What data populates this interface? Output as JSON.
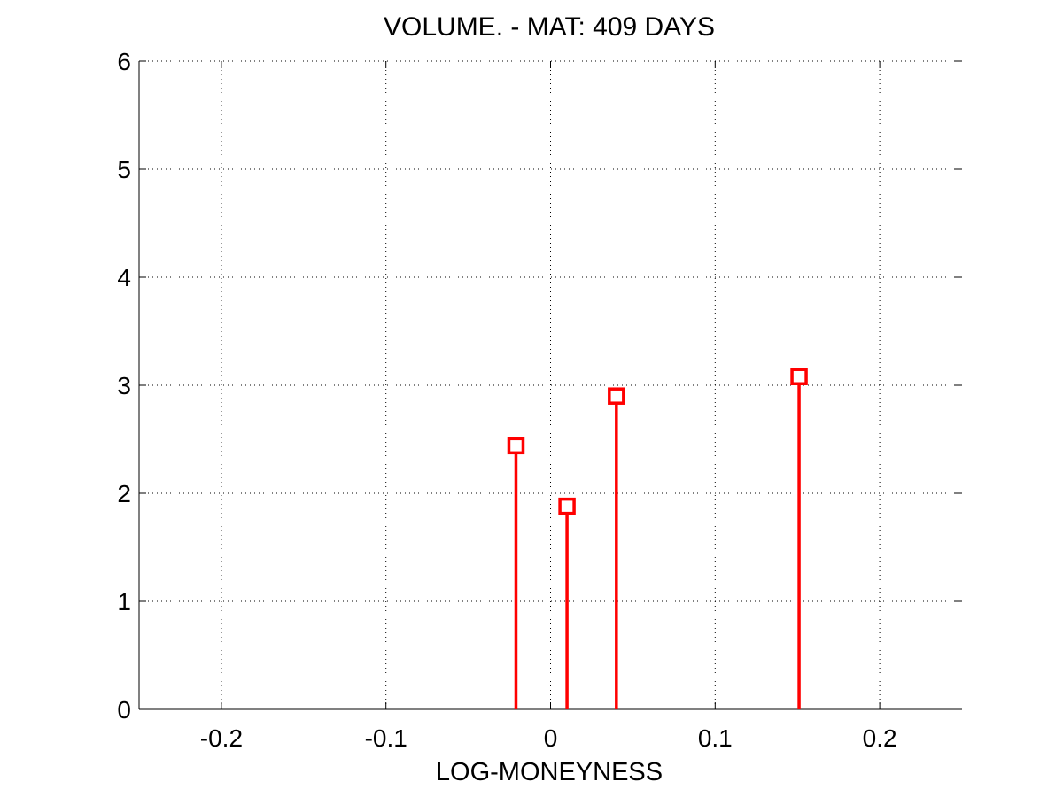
{
  "chart_data": {
    "type": "stem",
    "title": "VOLUME. - MAT: 409 DAYS",
    "xlabel": "LOG-MONEYNESS",
    "ylabel": "",
    "xlim": [
      -0.25,
      0.25
    ],
    "ylim": [
      0,
      6
    ],
    "xticks": [
      -0.2,
      -0.1,
      0,
      0.1,
      0.2
    ],
    "xtick_labels": [
      "-0.2",
      "-0.1",
      "0",
      "0.1",
      "0.2"
    ],
    "yticks": [
      0,
      1,
      2,
      3,
      4,
      5,
      6
    ],
    "ytick_labels": [
      "0",
      "1",
      "2",
      "3",
      "4",
      "5",
      "6"
    ],
    "grid": true,
    "marker": "square",
    "color": "#ff0000",
    "series": [
      {
        "x": [
          -0.021,
          0.01,
          0.04,
          0.151
        ],
        "y": [
          2.44,
          1.88,
          2.9,
          3.08
        ]
      }
    ]
  }
}
